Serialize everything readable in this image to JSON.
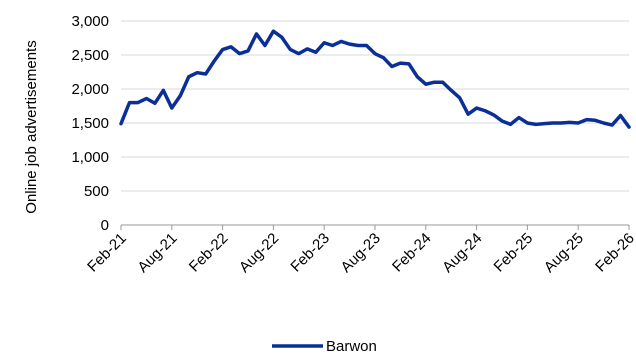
{
  "chart_data": {
    "type": "line",
    "title": "",
    "xlabel": "",
    "ylabel": "Online job advertisements",
    "ylim": [
      0,
      3000
    ],
    "y_ticks": [
      "0",
      "500",
      "1,000",
      "1,500",
      "2,000",
      "2,500",
      "3,000"
    ],
    "x_tick_labels": [
      "Feb-21",
      "Aug-21",
      "Feb-22",
      "Aug-22",
      "Feb-23",
      "Aug-23",
      "Feb-24",
      "Aug-24",
      "Feb-25",
      "Aug-25",
      "Feb-26"
    ],
    "grid": "horizontal",
    "legend_position": "bottom",
    "line_color": "#0a2f96",
    "x": [
      "Feb-21",
      "Mar-21",
      "Apr-21",
      "May-21",
      "Jun-21",
      "Jul-21",
      "Aug-21",
      "Sep-21",
      "Oct-21",
      "Nov-21",
      "Dec-21",
      "Jan-22",
      "Feb-22",
      "Mar-22",
      "Apr-22",
      "May-22",
      "Jun-22",
      "Jul-22",
      "Aug-22",
      "Sep-22",
      "Oct-22",
      "Nov-22",
      "Dec-22",
      "Jan-23",
      "Feb-23",
      "Mar-23",
      "Apr-23",
      "May-23",
      "Jun-23",
      "Jul-23",
      "Aug-23",
      "Sep-23",
      "Oct-23",
      "Nov-23",
      "Dec-23",
      "Jan-24",
      "Feb-24",
      "Mar-24",
      "Apr-24",
      "May-24",
      "Jun-24",
      "Jul-24",
      "Aug-24",
      "Sep-24",
      "Oct-24",
      "Nov-24",
      "Dec-24",
      "Jan-25",
      "Feb-25",
      "Mar-25",
      "Apr-25",
      "May-25",
      "Jun-25",
      "Jul-25",
      "Aug-25",
      "Sep-25",
      "Oct-25",
      "Nov-25",
      "Dec-25",
      "Jan-26",
      "Feb-26"
    ],
    "series": [
      {
        "name": "Barwon",
        "values": [
          1490,
          1800,
          1800,
          1860,
          1790,
          1980,
          1720,
          1900,
          2180,
          2240,
          2220,
          2410,
          2580,
          2620,
          2520,
          2560,
          2810,
          2640,
          2850,
          2760,
          2580,
          2520,
          2590,
          2540,
          2680,
          2640,
          2700,
          2660,
          2640,
          2640,
          2520,
          2460,
          2330,
          2380,
          2370,
          2180,
          2070,
          2100,
          2100,
          1980,
          1870,
          1630,
          1720,
          1680,
          1620,
          1530,
          1480,
          1580,
          1500,
          1480,
          1490,
          1500,
          1500,
          1510,
          1500,
          1550,
          1540,
          1500,
          1470,
          1610,
          1440
        ]
      }
    ]
  }
}
